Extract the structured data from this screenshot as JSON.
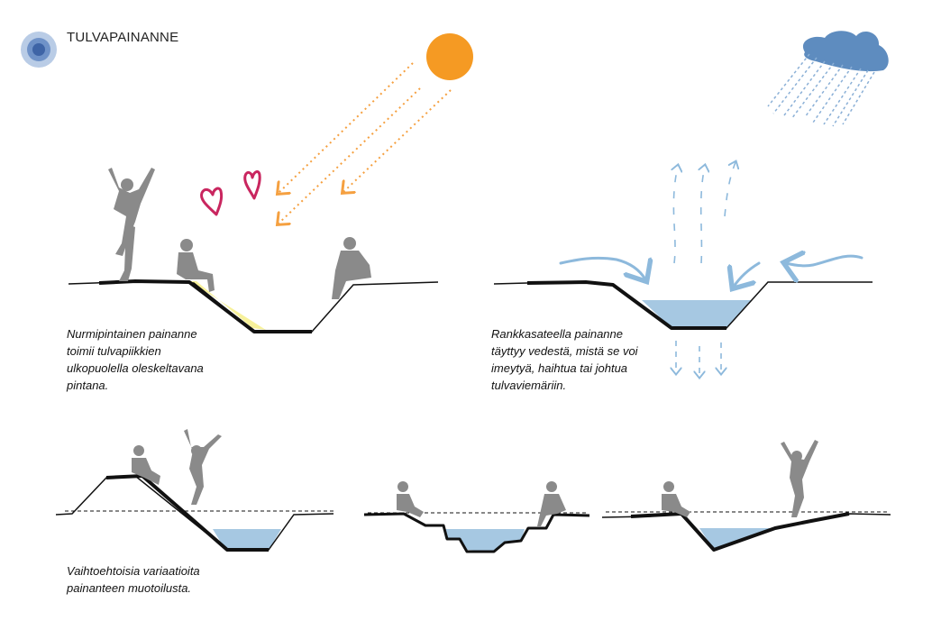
{
  "title": "TULVAPAINANNE",
  "captions": {
    "dry": [
      "Nurmipintainen painanne",
      "toimii tulvapiikkien",
      "ulkopuolella oleskeltavana",
      "pintana."
    ],
    "rain": [
      "Rankkasateella painanne",
      "täyttyy vedestä, mistä se voi",
      "imeytyä, haihtua tai johtua",
      "tulvaviemäriin."
    ],
    "variants": [
      "Vaihtoehtoisia variaatioita",
      "painanteen muotoilusta."
    ]
  },
  "colors": {
    "sun": "#F59A23",
    "sun_rays": "#F5A040",
    "cloud": "#5E8CBF",
    "rain": "#8AAFD6",
    "water": "#A6C8E2",
    "arrows_blue": "#8DB9DC",
    "heart": "#C9265F",
    "sunlight": "#F6EF8A",
    "ground": "#111111",
    "person": "#8A8A8A",
    "logo_outer": "#B9CCE6",
    "logo_mid": "#6F92C8",
    "logo_inner": "#3E64A6"
  },
  "icons": [
    "flood-logo-icon",
    "sun-icon",
    "rain-cloud-icon",
    "heart-icon",
    "water-flow-arrow-icon",
    "evaporation-arrow-icon",
    "infiltration-arrow-icon",
    "person-figure-icon"
  ]
}
